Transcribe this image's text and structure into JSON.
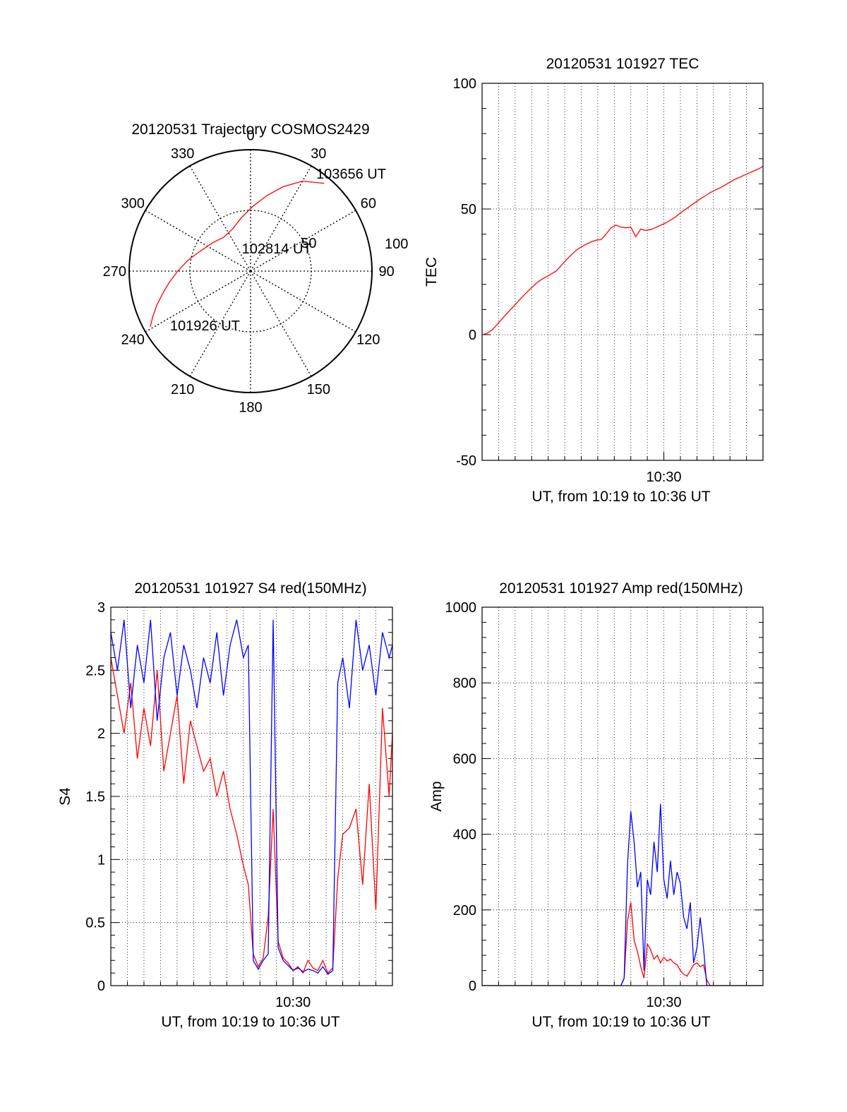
{
  "chart_data": [
    {
      "type": "polar",
      "title": "20120531 Trajectory COSMOS2429",
      "angle_labels": [
        "0",
        "30",
        "60",
        "90",
        "120",
        "150",
        "180",
        "210",
        "240",
        "270",
        "300",
        "330"
      ],
      "angles": [
        0,
        30,
        60,
        90,
        120,
        150,
        180,
        210,
        240,
        270,
        300,
        330
      ],
      "radial_labels": [
        "50",
        "100"
      ],
      "radial_values": [
        50,
        100
      ],
      "rlim": [
        0,
        90
      ],
      "inner_circle": 45,
      "series": [
        {
          "color": "#ff0000",
          "points": [
            [
              241,
              85
            ],
            [
              245,
              80
            ],
            [
              250,
              74
            ],
            [
              255,
              68
            ],
            [
              262,
              61
            ],
            [
              270,
              54
            ],
            [
              280,
              47
            ],
            [
              292,
              40
            ],
            [
              307,
              35
            ],
            [
              322,
              32
            ],
            [
              337,
              34
            ],
            [
              350,
              40
            ],
            [
              362,
              48
            ],
            [
              372,
              57
            ],
            [
              381,
              67
            ],
            [
              390,
              77
            ],
            [
              400,
              85
            ]
          ]
        }
      ],
      "annotations": [
        {
          "text": "103656 UT",
          "angle": 34,
          "r": 87
        },
        {
          "text": "102814 UT",
          "angle": 339,
          "r": 18
        },
        {
          "text": "101926 UT",
          "angle": 236,
          "r": 72
        }
      ],
      "extra_labels": [
        {
          "text": "50",
          "angle": 64,
          "r": 48
        }
      ]
    },
    {
      "type": "line",
      "title": "20120531 101927 TEC",
      "ylabel": "TEC",
      "xlabel": "UT, from 10:19 to 10:36 UT",
      "ylim": [
        -50,
        100
      ],
      "yticks": [
        -50,
        0,
        50,
        100
      ],
      "xlim": [
        0,
        17
      ],
      "xticks": [
        {
          "value": 11,
          "label": "10:30"
        }
      ],
      "grid": true,
      "series": [
        {
          "color": "#ff0000",
          "x": [
            0.0,
            0.3,
            0.6,
            0.9,
            1.2,
            1.5,
            1.8,
            2.1,
            2.4,
            2.7,
            3.0,
            3.3,
            3.6,
            3.9,
            4.2,
            4.5,
            4.8,
            5.1,
            5.4,
            5.7,
            6.0,
            6.3,
            6.6,
            6.9,
            7.2,
            7.5,
            7.8,
            8.1,
            8.4,
            8.7,
            9.0,
            9.3,
            9.6,
            9.9,
            10.2,
            10.5,
            10.8,
            11.1,
            11.4,
            11.7,
            12.0,
            12.3,
            12.6,
            12.9,
            13.2,
            13.5,
            13.8,
            14.1,
            14.4,
            14.7,
            15.0,
            15.3,
            15.6,
            15.9,
            16.2,
            16.5,
            16.8,
            17.0
          ],
          "y": [
            0.0,
            0.5,
            1.8,
            4.0,
            6.2,
            8.4,
            10.5,
            12.6,
            14.8,
            16.8,
            18.7,
            20.6,
            22.0,
            23.0,
            24.2,
            25.4,
            27.6,
            29.8,
            31.8,
            33.6,
            34.9,
            36.0,
            36.9,
            37.6,
            37.8,
            40.0,
            42.5,
            43.6,
            42.8,
            42.5,
            42.8,
            39.0,
            42.0,
            41.5,
            41.8,
            42.6,
            43.5,
            44.4,
            45.6,
            46.8,
            48.4,
            49.8,
            51.2,
            52.6,
            54.0,
            55.2,
            56.5,
            57.5,
            58.4,
            59.5,
            60.7,
            61.8,
            62.6,
            63.6,
            64.4,
            65.3,
            66.2,
            67.0
          ]
        }
      ]
    },
    {
      "type": "line",
      "title": "20120531 101927 S4 red(150MHz)",
      "ylabel": "S4",
      "xlabel": "UT, from 10:19 to 10:36 UT",
      "ylim": [
        0,
        3
      ],
      "yticks": [
        0,
        0.5,
        1,
        1.5,
        2,
        2.5,
        3
      ],
      "ytick_labels": [
        "0",
        "0.5",
        "1",
        "1.5",
        "2",
        "2.5",
        "3"
      ],
      "xlim": [
        0,
        17
      ],
      "xticks": [
        {
          "value": 11,
          "label": "10:30"
        }
      ],
      "grid": true,
      "series": [
        {
          "color": "#ff0000",
          "x": [
            0.0,
            0.4,
            0.8,
            1.2,
            1.6,
            2.0,
            2.4,
            2.8,
            3.2,
            3.6,
            4.0,
            4.4,
            4.8,
            5.2,
            5.6,
            6.0,
            6.4,
            6.8,
            7.2,
            7.6,
            8.0,
            8.3,
            8.6,
            8.9,
            9.2,
            9.5,
            9.8,
            10.1,
            10.4,
            10.7,
            11.0,
            11.3,
            11.6,
            11.9,
            12.2,
            12.5,
            12.8,
            13.1,
            13.4,
            13.7,
            14.0,
            14.4,
            14.8,
            15.2,
            15.6,
            16.0,
            16.4,
            16.8,
            17.0
          ],
          "y": [
            2.6,
            2.3,
            2.0,
            2.4,
            1.8,
            2.2,
            1.9,
            2.5,
            1.7,
            2.0,
            2.3,
            1.6,
            2.1,
            1.9,
            1.7,
            1.8,
            1.5,
            1.7,
            1.4,
            1.2,
            0.95,
            0.8,
            0.25,
            0.15,
            0.22,
            0.55,
            1.4,
            0.35,
            0.22,
            0.18,
            0.12,
            0.15,
            0.1,
            0.2,
            0.14,
            0.12,
            0.2,
            0.1,
            0.14,
            0.85,
            1.2,
            1.25,
            1.4,
            0.8,
            1.6,
            0.6,
            2.2,
            1.5,
            2.0
          ]
        },
        {
          "color": "#0000ff",
          "x": [
            0.0,
            0.4,
            0.8,
            1.2,
            1.6,
            2.0,
            2.4,
            2.8,
            3.2,
            3.6,
            4.0,
            4.4,
            4.8,
            5.2,
            5.6,
            6.0,
            6.4,
            6.8,
            7.2,
            7.6,
            8.0,
            8.3,
            8.6,
            8.9,
            9.2,
            9.5,
            9.8,
            10.1,
            10.4,
            10.7,
            11.0,
            11.3,
            11.6,
            11.9,
            12.2,
            12.5,
            12.8,
            13.1,
            13.4,
            13.7,
            14.0,
            14.4,
            14.8,
            15.2,
            15.6,
            16.0,
            16.4,
            16.8,
            17.0
          ],
          "y": [
            2.8,
            2.5,
            2.9,
            2.2,
            2.7,
            2.4,
            2.9,
            2.1,
            2.6,
            2.8,
            2.3,
            2.7,
            2.5,
            2.2,
            2.6,
            2.4,
            2.8,
            2.3,
            2.7,
            2.9,
            2.6,
            2.7,
            0.2,
            0.13,
            0.2,
            0.25,
            2.9,
            0.3,
            0.2,
            0.16,
            0.12,
            0.14,
            0.11,
            0.13,
            0.12,
            0.1,
            0.15,
            0.09,
            0.12,
            2.4,
            2.6,
            2.2,
            2.9,
            2.5,
            2.7,
            2.3,
            2.8,
            2.6,
            2.7
          ]
        }
      ]
    },
    {
      "type": "line",
      "title": "20120531 101927 Amp red(150MHz)",
      "ylabel": "Amp",
      "xlabel": "UT, from 10:19 to 10:36 UT",
      "ylim": [
        0,
        1000
      ],
      "yticks": [
        0,
        200,
        400,
        600,
        800,
        1000
      ],
      "xlim": [
        0,
        17
      ],
      "xticks": [
        {
          "value": 11,
          "label": "10:30"
        }
      ],
      "grid": true,
      "series": [
        {
          "color": "#ff0000",
          "x": [
            0.0,
            8.4,
            8.6,
            8.8,
            9.0,
            9.2,
            9.4,
            9.6,
            9.8,
            10.0,
            10.2,
            10.4,
            10.6,
            10.8,
            11.0,
            11.2,
            11.4,
            11.6,
            11.8,
            12.0,
            12.2,
            12.4,
            12.6,
            12.8,
            13.0,
            13.2,
            13.4,
            13.6,
            13.8,
            14.0,
            17.0
          ],
          "y": [
            0,
            0,
            20,
            170,
            220,
            120,
            90,
            50,
            20,
            110,
            95,
            70,
            80,
            60,
            75,
            65,
            70,
            60,
            55,
            40,
            30,
            25,
            40,
            55,
            60,
            50,
            55,
            15,
            0,
            0,
            0
          ]
        },
        {
          "color": "#0000ff",
          "x": [
            0.0,
            8.4,
            8.6,
            8.8,
            9.0,
            9.2,
            9.4,
            9.6,
            9.8,
            10.0,
            10.2,
            10.4,
            10.6,
            10.8,
            11.0,
            11.2,
            11.4,
            11.6,
            11.8,
            12.0,
            12.2,
            12.4,
            12.6,
            12.8,
            13.0,
            13.2,
            13.4,
            13.6,
            13.8,
            14.0,
            17.0
          ],
          "y": [
            0,
            0,
            20,
            320,
            460,
            380,
            260,
            300,
            40,
            280,
            240,
            380,
            300,
            480,
            280,
            230,
            330,
            240,
            300,
            270,
            180,
            150,
            220,
            60,
            100,
            180,
            100,
            0,
            0,
            0,
            0
          ]
        }
      ]
    }
  ]
}
